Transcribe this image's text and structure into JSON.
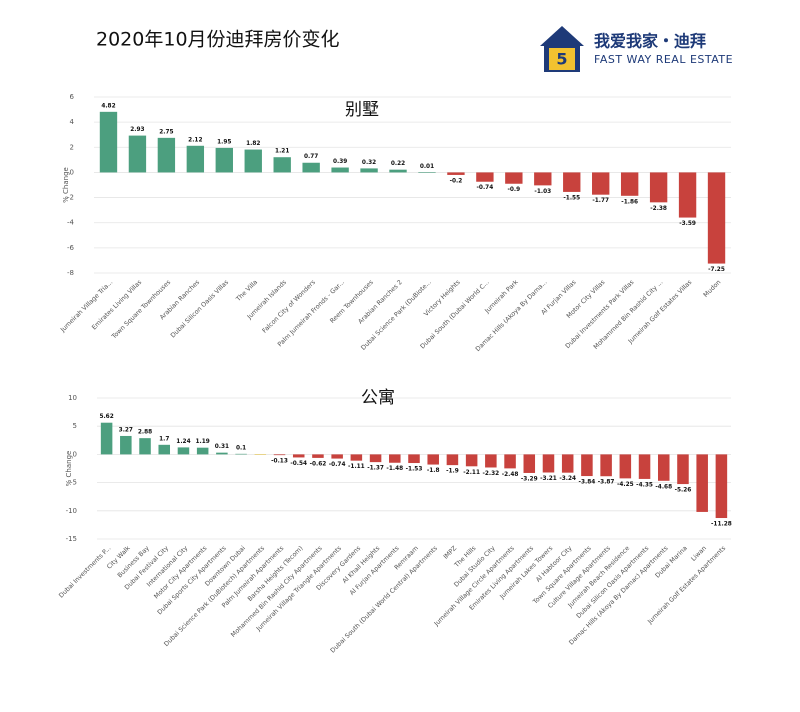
{
  "header": {
    "title": "2020年10月份迪拜房价变化",
    "brand": "我爱我家・迪拜",
    "brand_en": "FAST WAY REAL ESTATE"
  },
  "chart_data": [
    {
      "type": "bar",
      "title": "别墅",
      "y_label": "% Change",
      "categories": [
        "Jumeirah Village Tria...",
        "Emirates Living Villas",
        "Town Square Townhouses",
        "Arabian Ranches",
        "Dubai Silicon Oasis Villas",
        "The Villa",
        "Jumeirah Islands",
        "Falcon City of Wonders",
        "Palm Jumeirah Fronds - Gar...",
        "Reem Townhouses",
        "Arabian Ranches 2",
        "Dubai Science Park (DuBiote...",
        "Victory Heights",
        "Dubai South (Dubai World C...",
        "Jumeirah Park",
        "Damac Hills (Akoya By Dama...",
        "Al Furjan Villas",
        "Motor City Villas",
        "Dubai Investments Park Villas",
        "Mohammed Bin Rashid City ...",
        "Jumeirah Golf Estates Villas",
        "Mudon"
      ],
      "values": [
        4.82,
        2.93,
        2.75,
        2.12,
        1.95,
        1.82,
        1.21,
        0.77,
        0.39,
        0.32,
        0.22,
        0.01,
        -0.2,
        -0.74,
        -0.9,
        -1.03,
        -1.55,
        -1.77,
        -1.86,
        -2.38,
        -3.59,
        -7.25
      ],
      "value_labels": [
        "4.82",
        "2.93",
        "2.75",
        "2.12",
        "1.95",
        "1.82",
        "1.21",
        "0.77",
        "0.39",
        "0.32",
        "0.22",
        "0.01",
        "-0.2",
        "-0.74",
        "-0.9",
        "-1.03",
        "-1.55",
        "-1.77",
        "-1.86",
        "-2.38",
        "-3.59",
        "-7.25"
      ],
      "positive_color": "#4c9f7f",
      "negative_color": "#c8423d",
      "ylim": [
        -8,
        6
      ],
      "yticks": [
        -8,
        -6,
        -4,
        -2,
        0,
        2,
        4,
        6
      ],
      "grid": true
    },
    {
      "type": "bar",
      "title": "公寓",
      "y_label": "% Change",
      "categories": [
        "Dubai Investments P...",
        "City Walk",
        "Business Bay",
        "Dubai Festival City",
        "International City",
        "Motor City Apartments",
        "Dubai Sports City Apartments",
        "Downtown Dubai",
        "Dubai Science Park (DuBiotech) Apartments",
        "Palm Jumeirah Apartments",
        "Barsha Heights (Tecom)",
        "Mohammed Bin Rashid City Apartments",
        "Jumeirah Village Triangle Apartments",
        "Discovery Gardens",
        "Al Khail Heights",
        "Al Furjan Apartments",
        "Remraam",
        "Dubai South (Dubai World Central) Apartments",
        "IMPZ",
        "The Hills",
        "Dubai Studio City",
        "Jumeirah Village Circle Apartments",
        "Emirates Living Apartments",
        "Jumeirah Lakes Towers",
        "Al Habtoor City",
        "Town Square Apartments",
        "Culture Village Apartments",
        "Jumeirah Beach Residence",
        "Dubai Silicon Oasis Apartments",
        "Damac Hills (Akoya By Damac) Apartments",
        "Dubai Marina",
        "Liwan",
        "Jumeirah Golf Estates Apartments"
      ],
      "values": [
        5.62,
        3.27,
        2.88,
        1.7,
        1.24,
        1.19,
        0.31,
        0.1,
        0.05,
        -0.13,
        -0.54,
        -0.62,
        -0.74,
        -1.11,
        -1.37,
        -1.48,
        -1.53,
        -1.8,
        -1.9,
        -2.11,
        -2.32,
        -2.48,
        -3.29,
        -3.21,
        -3.24,
        -3.84,
        -3.87,
        -4.25,
        -4.35,
        -4.68,
        -5.26,
        -10.2,
        -11.28
      ],
      "value_labels": [
        "5.62",
        "3.27",
        "2.88",
        "1.7",
        "1.24",
        "1.19",
        "0.31",
        "0.1",
        null,
        "-0.13",
        "-0.54",
        "-0.62",
        "-0.74",
        "-1.11",
        "-1.37",
        "-1.48",
        "-1.53",
        "-1.8",
        "-1.9",
        "-2.11",
        "-2.32",
        "-2.48",
        "-3.29",
        "-3.21",
        "-3.24",
        "-3.84",
        "-3.87",
        "-4.25",
        "-4.35",
        "-4.68",
        "-5.26",
        null,
        "-11.28"
      ],
      "positive_color": "#4c9f7f",
      "negative_color": "#c8423d",
      "neutral_color": "#e6c54a",
      "neutral_index": 8,
      "ylim": [
        -15,
        10
      ],
      "yticks": [
        -15,
        -10,
        -5,
        0,
        5,
        10
      ],
      "grid": true
    }
  ]
}
